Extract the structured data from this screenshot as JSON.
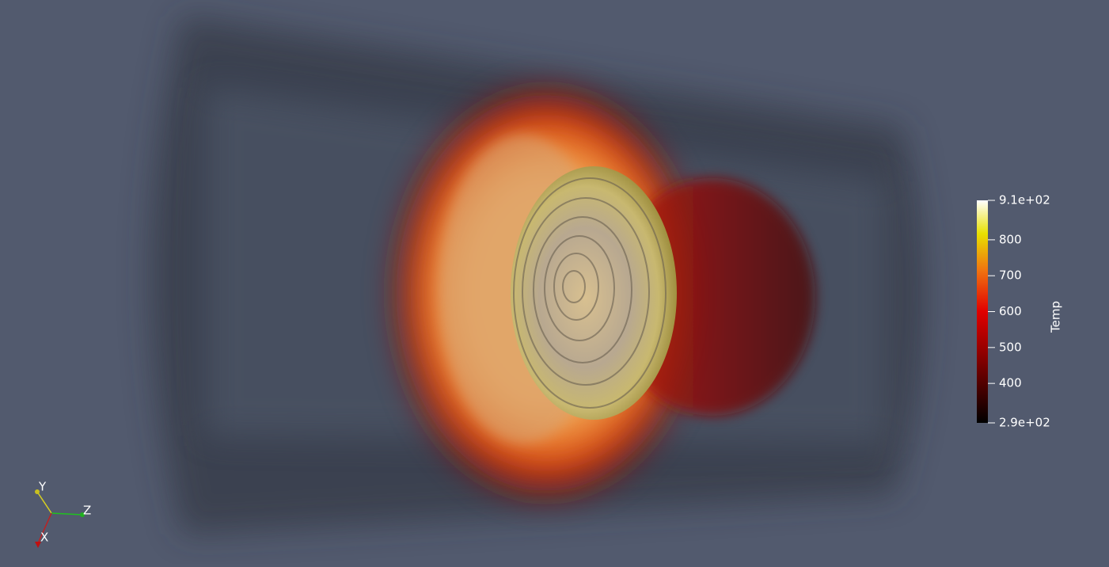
{
  "colorbar": {
    "title": "Temp",
    "ticks": [
      {
        "value": 910,
        "label": "9.1e+02"
      },
      800,
      700,
      600,
      500,
      400,
      {
        "value": 290,
        "label": "2.9e+02"
      }
    ]
  },
  "axes": {
    "y": "Y",
    "z": "Z",
    "x": "X"
  }
}
